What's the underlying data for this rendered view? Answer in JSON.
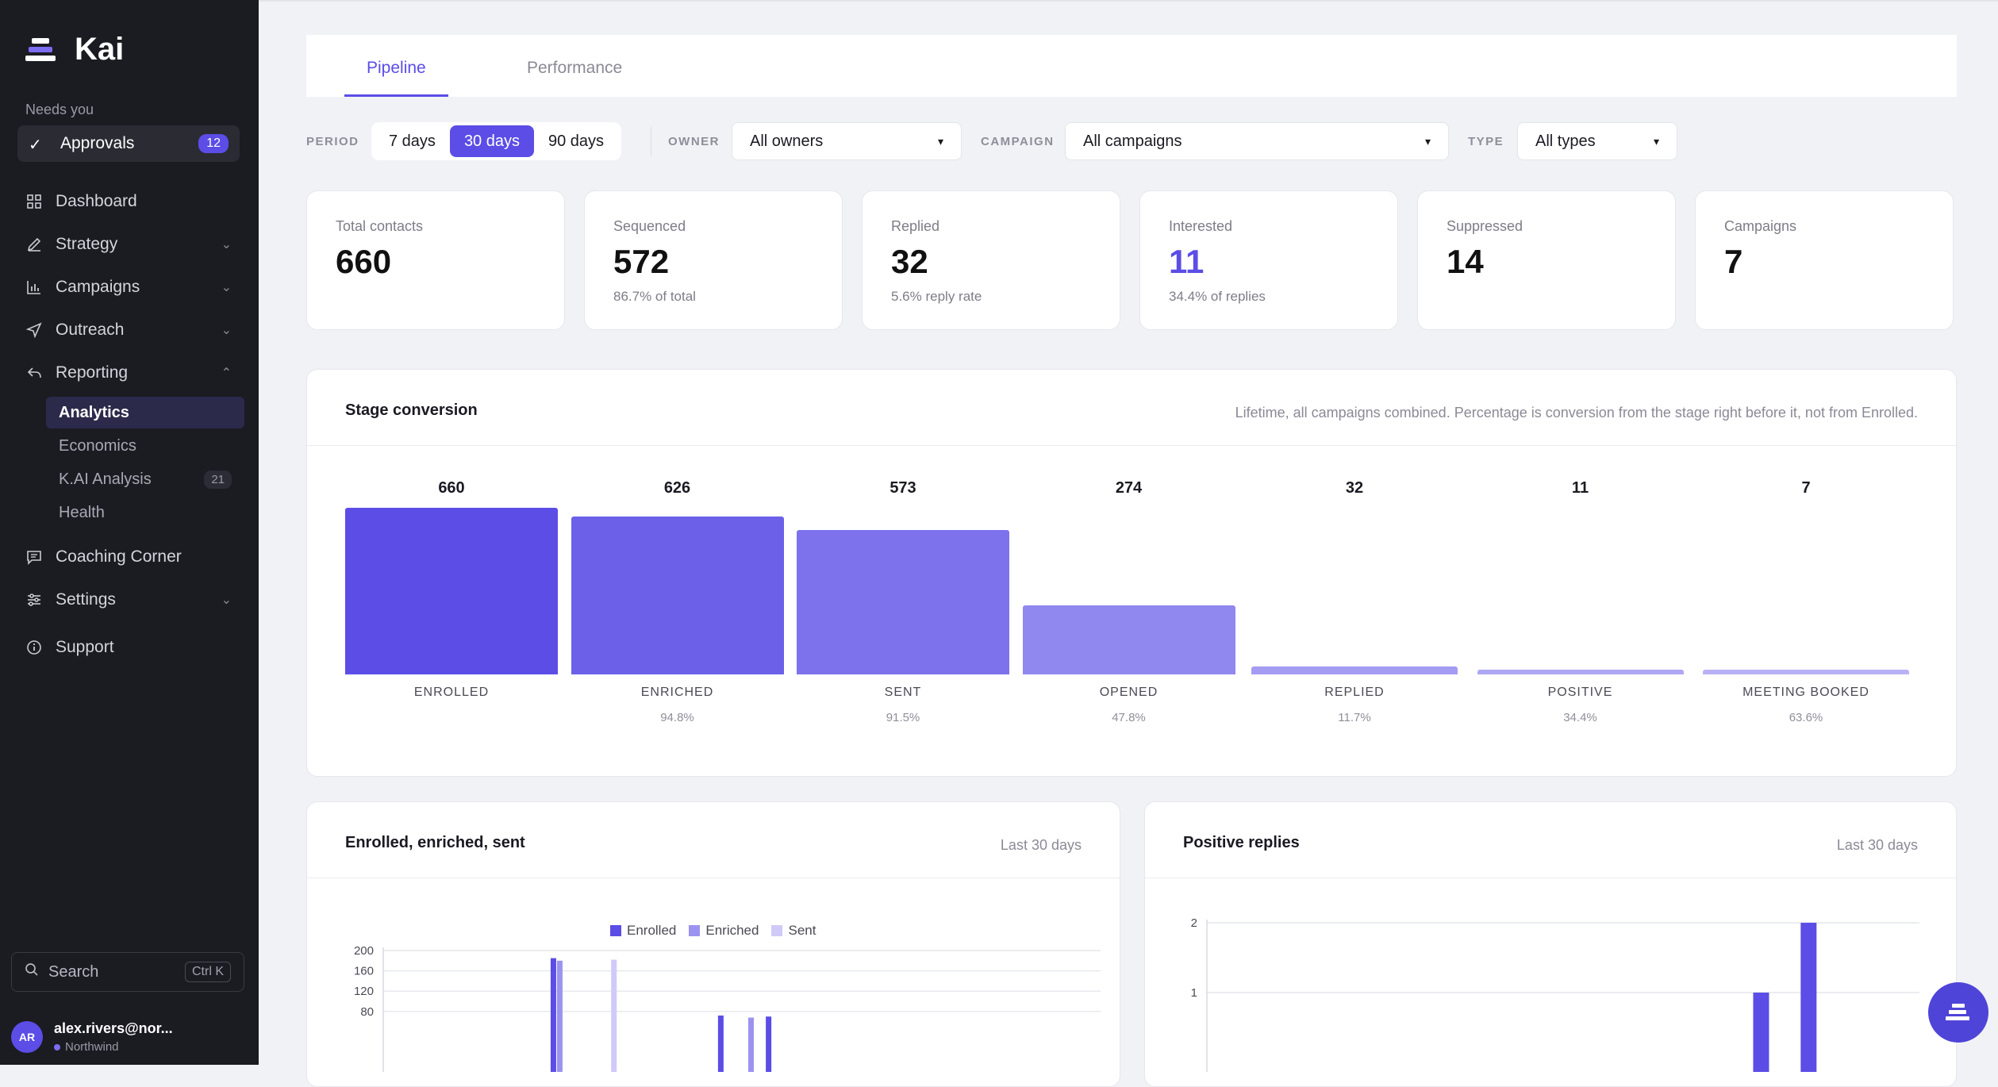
{
  "brand": {
    "name": "Kai"
  },
  "sidebar": {
    "needs_label": "Needs you",
    "approvals": {
      "label": "Approvals",
      "count": "12"
    },
    "items": [
      {
        "label": "Dashboard",
        "icon": "grid-icon"
      },
      {
        "label": "Strategy",
        "icon": "pen-icon"
      },
      {
        "label": "Campaigns",
        "icon": "bar-chart-icon"
      },
      {
        "label": "Outreach",
        "icon": "send-icon"
      },
      {
        "label": "Reporting",
        "icon": "reply-icon"
      }
    ],
    "reporting_sub": [
      {
        "label": "Analytics"
      },
      {
        "label": "Economics"
      },
      {
        "label": "K.AI Analysis",
        "count": "21"
      },
      {
        "label": "Health"
      }
    ],
    "bottom_items": [
      {
        "label": "Coaching Corner",
        "icon": "chat-icon"
      },
      {
        "label": "Settings",
        "icon": "sliders-icon"
      },
      {
        "label": "Support",
        "icon": "info-icon"
      }
    ],
    "search": {
      "label": "Search",
      "shortcut": "Ctrl K"
    },
    "user": {
      "initials": "AR",
      "name": "alex.rivers@nor...",
      "org": "Northwind"
    }
  },
  "tabs": [
    {
      "label": "Pipeline"
    },
    {
      "label": "Performance"
    }
  ],
  "filters": {
    "period_label": "PERIOD",
    "periods": [
      "7 days",
      "30 days",
      "90 days"
    ],
    "owner_label": "OWNER",
    "owner_value": "All owners",
    "campaign_label": "CAMPAIGN",
    "campaign_value": "All campaigns",
    "type_label": "TYPE",
    "type_value": "All types"
  },
  "stats": [
    {
      "title": "Total contacts",
      "value": "660",
      "sub": ""
    },
    {
      "title": "Sequenced",
      "value": "572",
      "sub": "86.7% of total"
    },
    {
      "title": "Replied",
      "value": "32",
      "sub": "5.6% reply rate"
    },
    {
      "title": "Interested",
      "value": "11",
      "sub": "34.4% of replies"
    },
    {
      "title": "Suppressed",
      "value": "14",
      "sub": ""
    },
    {
      "title": "Campaigns",
      "value": "7",
      "sub": ""
    }
  ],
  "stage": {
    "title": "Stage conversion",
    "note": "Lifetime, all campaigns combined. Percentage is conversion from the stage right before it, not from Enrolled."
  },
  "chart_data": [
    {
      "type": "bar",
      "title": "Stage conversion",
      "categories": [
        "ENROLLED",
        "ENRICHED",
        "SENT",
        "OPENED",
        "REPLIED",
        "POSITIVE",
        "MEETING BOOKED"
      ],
      "values": [
        660,
        626,
        573,
        274,
        32,
        11,
        7
      ],
      "value_labels": [
        "660",
        "626",
        "573",
        "274",
        "32",
        "11",
        "7"
      ],
      "percent_labels": [
        "",
        "94.8%",
        "91.5%",
        "47.8%",
        "11.7%",
        "34.4%",
        "63.6%"
      ],
      "colors": [
        "#5b4de6",
        "#6c60e9",
        "#7d72ec",
        "#9087ef",
        "#a49cf2",
        "#aea7f3",
        "#b8b2f5"
      ]
    },
    {
      "type": "bar",
      "title": "Enrolled, enriched, sent",
      "subtitle": "Last 30 days",
      "series": [
        {
          "name": "Enrolled",
          "color": "#5b4de6"
        },
        {
          "name": "Enriched",
          "color": "#9c93f0"
        },
        {
          "name": "Sent",
          "color": "#cfcaf8"
        }
      ],
      "y_ticks": [
        "200",
        "160",
        "120",
        "80"
      ],
      "ylim": [
        0,
        200
      ],
      "bars": [
        {
          "day": 7,
          "series": 0,
          "value": 185
        },
        {
          "day": 7,
          "series": 1,
          "value": 180
        },
        {
          "day": 9,
          "series": 2,
          "value": 182
        },
        {
          "day": 14,
          "series": 0,
          "value": 72
        },
        {
          "day": 15,
          "series": 1,
          "value": 68
        },
        {
          "day": 16,
          "series": 0,
          "value": 70
        }
      ]
    },
    {
      "type": "bar",
      "title": "Positive replies",
      "subtitle": "Last 30 days",
      "y_ticks": [
        "2",
        "1"
      ],
      "ylim": [
        0,
        2
      ],
      "bars": [
        {
          "day": 23,
          "value": 1
        },
        {
          "day": 25,
          "value": 2
        }
      ]
    }
  ]
}
